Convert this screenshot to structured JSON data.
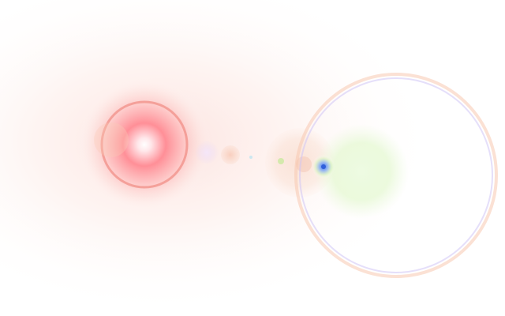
{
  "image": {
    "subject": "lens-flare",
    "palette": {
      "background": "#ffffff",
      "haze": "#fde9e4",
      "core_red": "#ff6f7a",
      "core_white": "#ffffff",
      "ring_red": "#f0857c",
      "peach": "#f6c4a8",
      "lavender": "#e9d7f5",
      "green_glow": "#dff6c8",
      "blue_dot": "#4f7fe8",
      "ring_orange": "#f7c9b0",
      "ring_violet": "#cfc4f6"
    },
    "elements": [
      "background-haze",
      "primary-glow",
      "primary-ring",
      "ghost-orb-large",
      "ghost-orb-small",
      "ghost-dot",
      "secondary-orb",
      "green-glow",
      "blue-hotspot",
      "outer-halo-ring"
    ]
  }
}
